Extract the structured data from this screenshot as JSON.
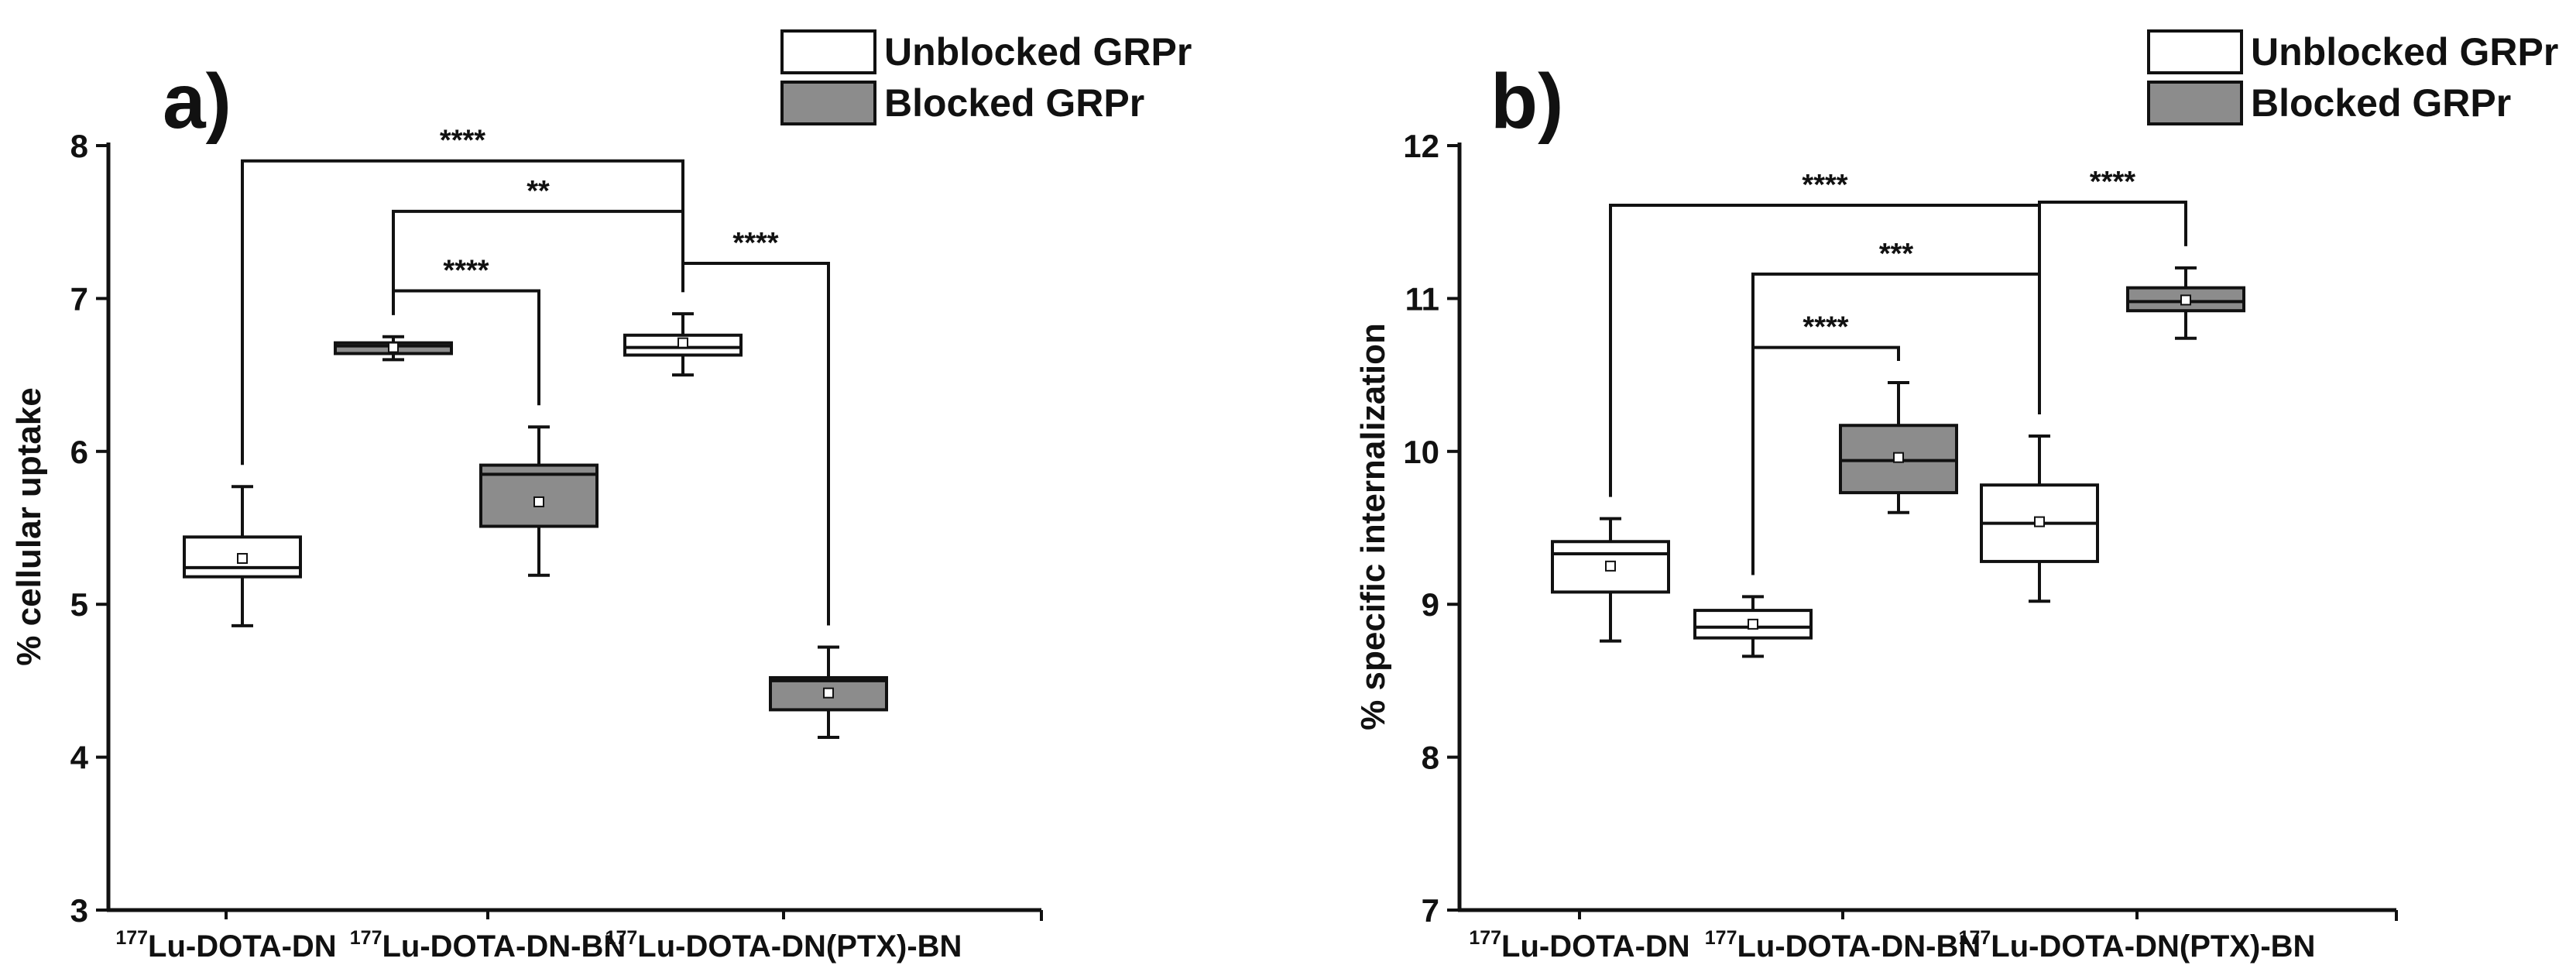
{
  "colors": {
    "unblocked": "#ffffff",
    "blocked": "#8c8c8c",
    "stroke": "#111111"
  },
  "chart_data": [
    {
      "type": "box",
      "panel_label": "a)",
      "ylabel": "% cellular uptake",
      "ylim": [
        3,
        8
      ],
      "yticks": [
        3,
        4,
        5,
        6,
        7,
        8
      ],
      "categories": [
        {
          "sup": "177",
          "name": "Lu-DOTA-DN"
        },
        {
          "sup": "177",
          "name": "Lu-DOTA-DN-BN"
        },
        {
          "sup": "177",
          "name": "Lu-DOTA-DN(PTX)-BN"
        }
      ],
      "legend": [
        {
          "label": "Unblocked GRPr",
          "group": "unblocked"
        },
        {
          "label": "Blocked GRPr",
          "group": "blocked"
        }
      ],
      "boxes": [
        {
          "category": 0,
          "slot": "unblocked",
          "group": "unblocked",
          "min": 4.86,
          "q1": 5.18,
          "median": 5.24,
          "q3": 5.44,
          "max": 5.77,
          "mean": 5.3
        },
        {
          "category": 1,
          "slot": "unblocked",
          "group": "blocked",
          "min": 6.6,
          "q1": 6.64,
          "median": 6.69,
          "q3": 6.71,
          "max": 6.75,
          "mean": 6.68
        },
        {
          "category": 1,
          "slot": "blocked",
          "group": "blocked",
          "min": 5.19,
          "q1": 5.51,
          "median": 5.85,
          "q3": 5.91,
          "max": 6.16,
          "mean": 5.67
        },
        {
          "category": 2,
          "slot": "unblocked",
          "group": "unblocked",
          "min": 6.5,
          "q1": 6.63,
          "median": 6.68,
          "q3": 6.76,
          "max": 6.9,
          "mean": 6.71
        },
        {
          "category": 2,
          "slot": "blocked",
          "group": "blocked",
          "min": 4.13,
          "q1": 4.31,
          "median": 4.5,
          "q3": 4.52,
          "max": 4.72,
          "mean": 4.42
        }
      ],
      "brackets": [
        {
          "from_box": 0,
          "to_box": 3,
          "y": 7.9,
          "label": "****"
        },
        {
          "from_box": 1,
          "to_box": 3,
          "y": 7.57,
          "label": "**"
        },
        {
          "from_box": 1,
          "to_box": 2,
          "y": 7.05,
          "label": "****"
        },
        {
          "from_box": 3,
          "to_box": 4,
          "y": 7.23,
          "label": "****"
        }
      ]
    },
    {
      "type": "box",
      "panel_label": "b)",
      "ylabel": "% specific internalization",
      "ylim": [
        7,
        12
      ],
      "yticks": [
        7,
        8,
        9,
        10,
        11,
        12
      ],
      "categories": [
        {
          "sup": "177",
          "name": "Lu-DOTA-DN"
        },
        {
          "sup": "177",
          "name": "Lu-DOTA-DN-BN"
        },
        {
          "sup": "177",
          "name": "Lu-DOTA-DN(PTX)-BN"
        }
      ],
      "legend": [
        {
          "label": "Unblocked GRPr",
          "group": "unblocked"
        },
        {
          "label": "Blocked GRPr",
          "group": "blocked"
        }
      ],
      "boxes": [
        {
          "category": 0,
          "slot": "unblocked",
          "group": "unblocked",
          "min": 8.76,
          "q1": 9.08,
          "median": 9.33,
          "q3": 9.41,
          "max": 9.56,
          "mean": 9.25
        },
        {
          "category": 1,
          "slot": "unblocked",
          "group": "unblocked",
          "min": 8.66,
          "q1": 8.78,
          "median": 8.85,
          "q3": 8.96,
          "max": 9.05,
          "mean": 8.87
        },
        {
          "category": 1,
          "slot": "blocked",
          "group": "blocked",
          "min": 9.6,
          "q1": 9.73,
          "median": 9.94,
          "q3": 10.17,
          "max": 10.45,
          "mean": 9.96
        },
        {
          "category": 2,
          "slot": "unblocked",
          "group": "unblocked",
          "min": 9.02,
          "q1": 9.28,
          "median": 9.53,
          "q3": 9.78,
          "max": 10.1,
          "mean": 9.54
        },
        {
          "category": 2,
          "slot": "blocked",
          "group": "blocked",
          "min": 10.74,
          "q1": 10.92,
          "median": 10.98,
          "q3": 11.07,
          "max": 11.2,
          "mean": 10.99
        }
      ],
      "brackets": [
        {
          "from_box": 0,
          "to_box": 3,
          "y": 11.61,
          "label": "****"
        },
        {
          "from_box": 1,
          "to_box": 3,
          "y": 11.16,
          "label": "***"
        },
        {
          "from_box": 1,
          "to_box": 2,
          "y": 10.68,
          "label": "****"
        },
        {
          "from_box": 3,
          "to_box": 4,
          "y": 11.63,
          "label": "****"
        }
      ]
    }
  ]
}
